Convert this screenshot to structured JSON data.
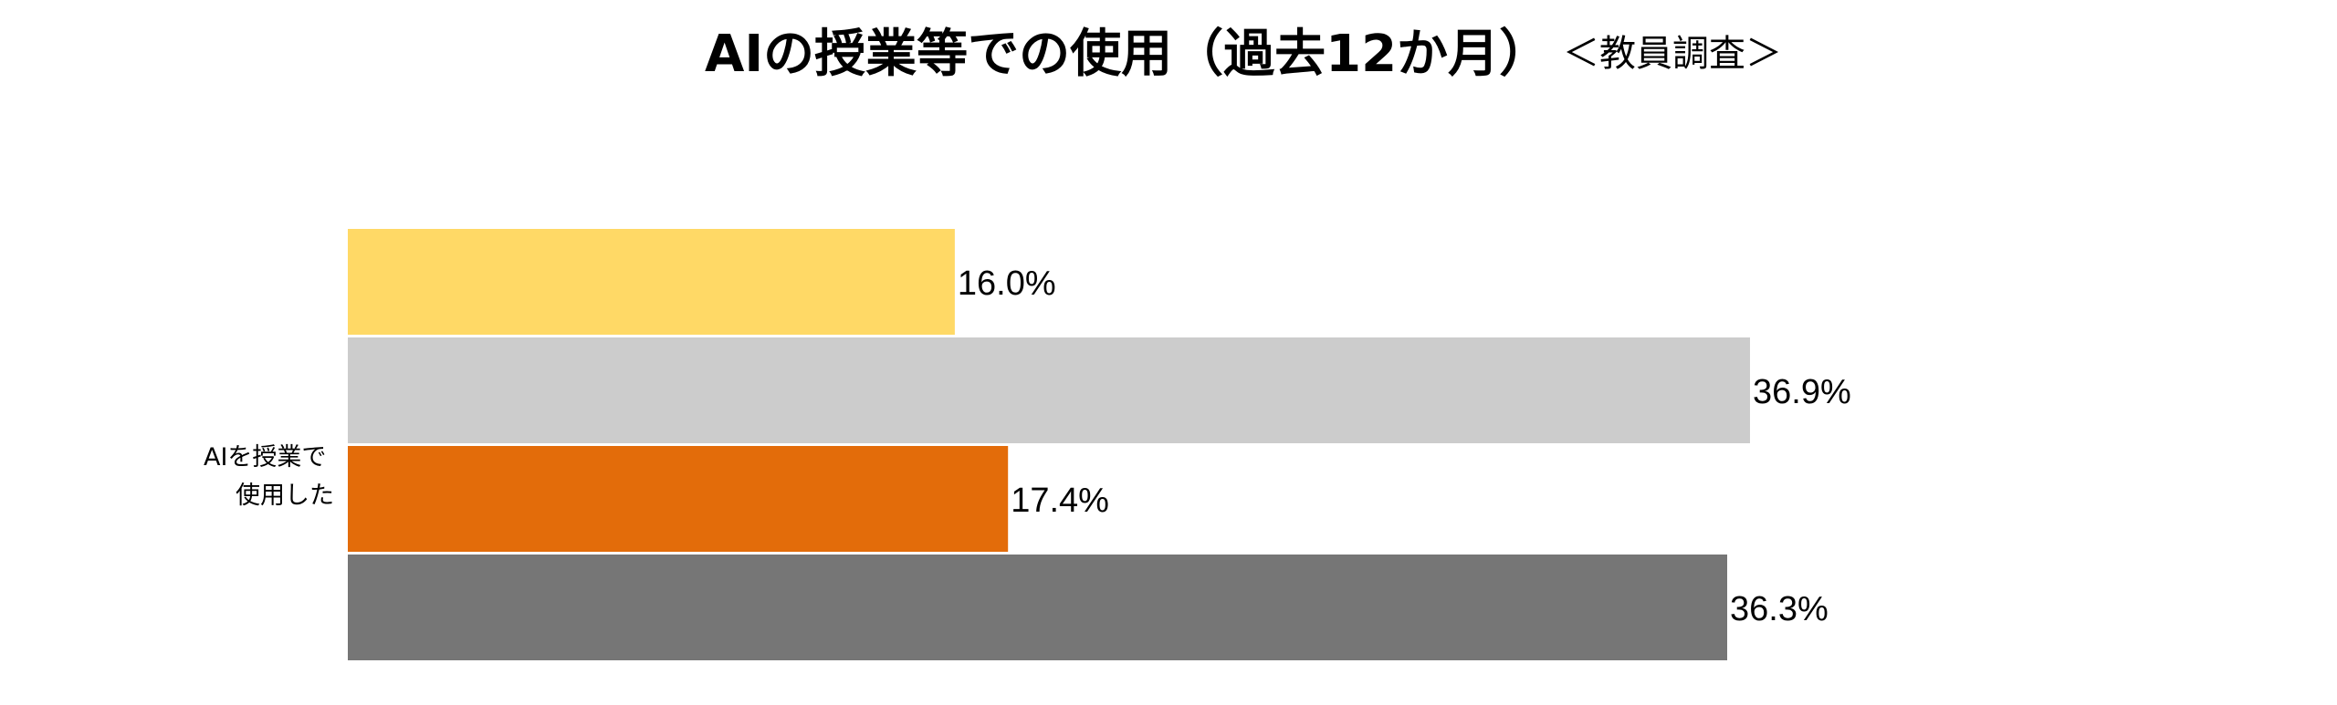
{
  "chart_data": {
    "type": "bar",
    "orientation": "horizontal",
    "title": "AIの授業等での使用（過去12か月）",
    "subtitle": "＜教員調査＞",
    "categories": [
      "AIを授業で使用した"
    ],
    "category_label_lines": [
      "AIを授業で",
      "使用した"
    ],
    "series": [
      {
        "values": [
          16.0
        ],
        "color": "#FFD966",
        "label": "16.0%"
      },
      {
        "values": [
          36.9
        ],
        "color": "#CCCCCC",
        "label": "36.9%"
      },
      {
        "values": [
          17.4
        ],
        "color": "#E36C0A",
        "label": "17.4%"
      },
      {
        "values": [
          36.3
        ],
        "color": "#767676",
        "label": "36.3%"
      }
    ],
    "xlim": [
      0,
      50
    ],
    "grid": false,
    "legend": "none",
    "xlabel": "",
    "ylabel": ""
  }
}
